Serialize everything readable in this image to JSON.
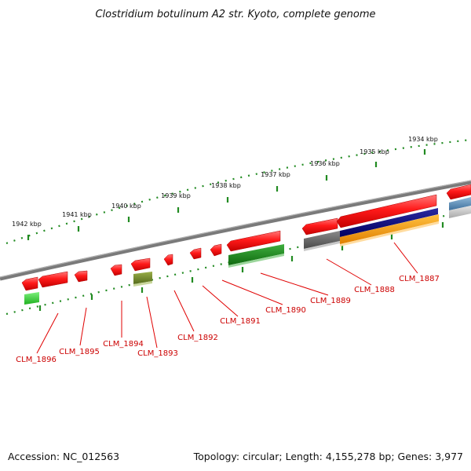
{
  "title": "Clostridium botulinum A2 str. Kyoto, complete genome",
  "footer": {
    "accession": "Accession: NC_012563",
    "info": "Topology: circular; Length: 4,155,278 bp; Genes: 3,977"
  },
  "scale_labels": [
    "1942 kbp",
    "1941 kbp",
    "1940 kbp",
    "1939 kbp",
    "1938 kbp",
    "1937 kbp",
    "1936 kbp",
    "1935 kbp",
    "1934 kbp"
  ],
  "gene_labels": [
    "CLM_1896",
    "CLM_1895",
    "CLM_1894",
    "CLM_1893",
    "CLM_1892",
    "CLM_1891",
    "CLM_1890",
    "CLM_1889",
    "CLM_1888",
    "CLM_1887"
  ],
  "colors": {
    "backbone": "#808080",
    "scale": "#228b22",
    "gene_forward": "#ff0000",
    "label": "#cc0000"
  }
}
